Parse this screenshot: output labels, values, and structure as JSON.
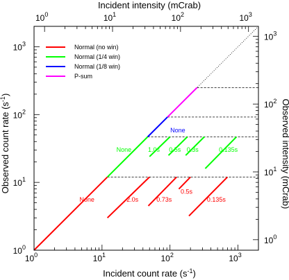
{
  "chart_data": {
    "type": "line",
    "x_axis_bottom": {
      "label": "Incident count rate (s",
      "label_sup": "-1",
      "label_end": ")",
      "scale": "log",
      "range": [
        1,
        2000
      ],
      "tick_labels": [
        "10",
        "10",
        "10",
        "10"
      ],
      "tick_exponents": [
        "0",
        "1",
        "2",
        "3"
      ]
    },
    "y_axis_left": {
      "label": "Observed count rate (s",
      "label_sup": "-1",
      "label_end": ")",
      "scale": "log",
      "range": [
        1,
        2000
      ],
      "tick_labels": [
        "10",
        "10",
        "10",
        "10"
      ],
      "tick_exponents": [
        "0",
        "1",
        "2",
        "3"
      ]
    },
    "x_axis_top": {
      "label": "Incident intensity (mCrab)",
      "scale": "log",
      "range_mcrab": [
        0.7,
        1400
      ],
      "tick_labels": [
        "10",
        "10",
        "10",
        "10"
      ],
      "tick_exponents": [
        "0",
        "1",
        "2",
        "3"
      ],
      "tick_values": [
        1,
        10,
        100,
        1000
      ]
    },
    "y_axis_right": {
      "label": "Observed intensity (mCrab)",
      "scale": "log",
      "tick_labels": [
        "10",
        "10",
        "10",
        "10"
      ],
      "tick_exponents": [
        "0",
        "1",
        "2",
        "3"
      ],
      "tick_values": [
        1,
        10,
        100,
        1000
      ]
    },
    "legend": {
      "placement": "top-left",
      "entries": [
        {
          "name": "Normal (no win)",
          "color": "#ff0000"
        },
        {
          "name": "Normal (1/4 win)",
          "color": "#00ff00"
        },
        {
          "name": "Normal (1/8 win)",
          "color": "#0000ff"
        },
        {
          "name": "P-sum",
          "color": "#ff00ff"
        }
      ]
    },
    "identity_dotted": {
      "x": [
        1,
        2000
      ],
      "y": [
        1,
        2000
      ]
    },
    "pileup_levels": [
      12,
      47,
      92,
      250
    ],
    "series": [
      {
        "name": "Normal (no win)",
        "color": "#ff0000",
        "x": [
          1,
          12
        ],
        "y": [
          1,
          12
        ]
      },
      {
        "name": "Normal (1/4 win)",
        "color": "#00ff00",
        "x": [
          12,
          47
        ],
        "y": [
          12,
          47
        ]
      },
      {
        "name": "Normal (1/8 win)",
        "color": "#0000ff",
        "x": [
          47,
          92
        ],
        "y": [
          47,
          92
        ]
      },
      {
        "name": "P-sum",
        "color": "#ff00ff",
        "x": [
          92,
          250
        ],
        "y": [
          92,
          250
        ]
      }
    ],
    "frame_time_lines": [
      {
        "mode": "Normal (no win)",
        "color": "#ff0000",
        "label": "2.0s",
        "x": [
          12,
          50
        ],
        "y": [
          3,
          12
        ]
      },
      {
        "mode": "Normal (no win)",
        "color": "#ff0000",
        "label": "0.73s",
        "x": [
          48,
          125
        ],
        "y": [
          4.5,
          12
        ]
      },
      {
        "mode": "Normal (no win)",
        "color": "#ff0000",
        "label": "0.5s",
        "x": [
          135,
          200
        ],
        "y": [
          8,
          12
        ]
      },
      {
        "mode": "Normal (no win)",
        "color": "#ff0000",
        "label": "0.135s",
        "x": [
          190,
          700
        ],
        "y": [
          3.2,
          12
        ]
      },
      {
        "mode": "Normal (1/4 win)",
        "color": "#00ff00",
        "label": "1.0s",
        "x": [
          50,
          100
        ],
        "y": [
          24,
          47
        ]
      },
      {
        "mode": "Normal (1/4 win)",
        "color": "#00ff00",
        "label": "0.5s",
        "x": [
          95,
          180
        ],
        "y": [
          25,
          47
        ]
      },
      {
        "mode": "Normal (1/4 win)",
        "color": "#00ff00",
        "label": "0.3s",
        "x": [
          170,
          320
        ],
        "y": [
          25,
          47
        ]
      },
      {
        "mode": "Normal (1/4 win)",
        "color": "#00ff00",
        "label": "0.135s",
        "x": [
          330,
          950
        ],
        "y": [
          16,
          47
        ]
      }
    ],
    "annotations": [
      {
        "text": "None",
        "color": "#ff0000",
        "x": 6,
        "y": 5.5
      },
      {
        "text": "2.0s",
        "color": "#ff0000",
        "x": 28,
        "y": 5.5
      },
      {
        "text": "0.73s",
        "color": "#ff0000",
        "x": 82,
        "y": 5.5
      },
      {
        "text": "0.5s",
        "color": "#ff0000",
        "x": 175,
        "y": 7.2
      },
      {
        "text": "0.135s",
        "color": "#ff0000",
        "x": 480,
        "y": 5.5
      },
      {
        "text": "None",
        "color": "#00ff00",
        "x": 21,
        "y": 30
      },
      {
        "text": "1.0s",
        "color": "#00ff00",
        "x": 58,
        "y": 30
      },
      {
        "text": "0.5s",
        "color": "#00ff00",
        "x": 118,
        "y": 30
      },
      {
        "text": "0.3s",
        "color": "#00ff00",
        "x": 215,
        "y": 30
      },
      {
        "text": "0.135s",
        "color": "#00ff00",
        "x": 720,
        "y": 30
      },
      {
        "text": "None",
        "color": "#0000ff",
        "x": 130,
        "y": 58
      }
    ]
  }
}
